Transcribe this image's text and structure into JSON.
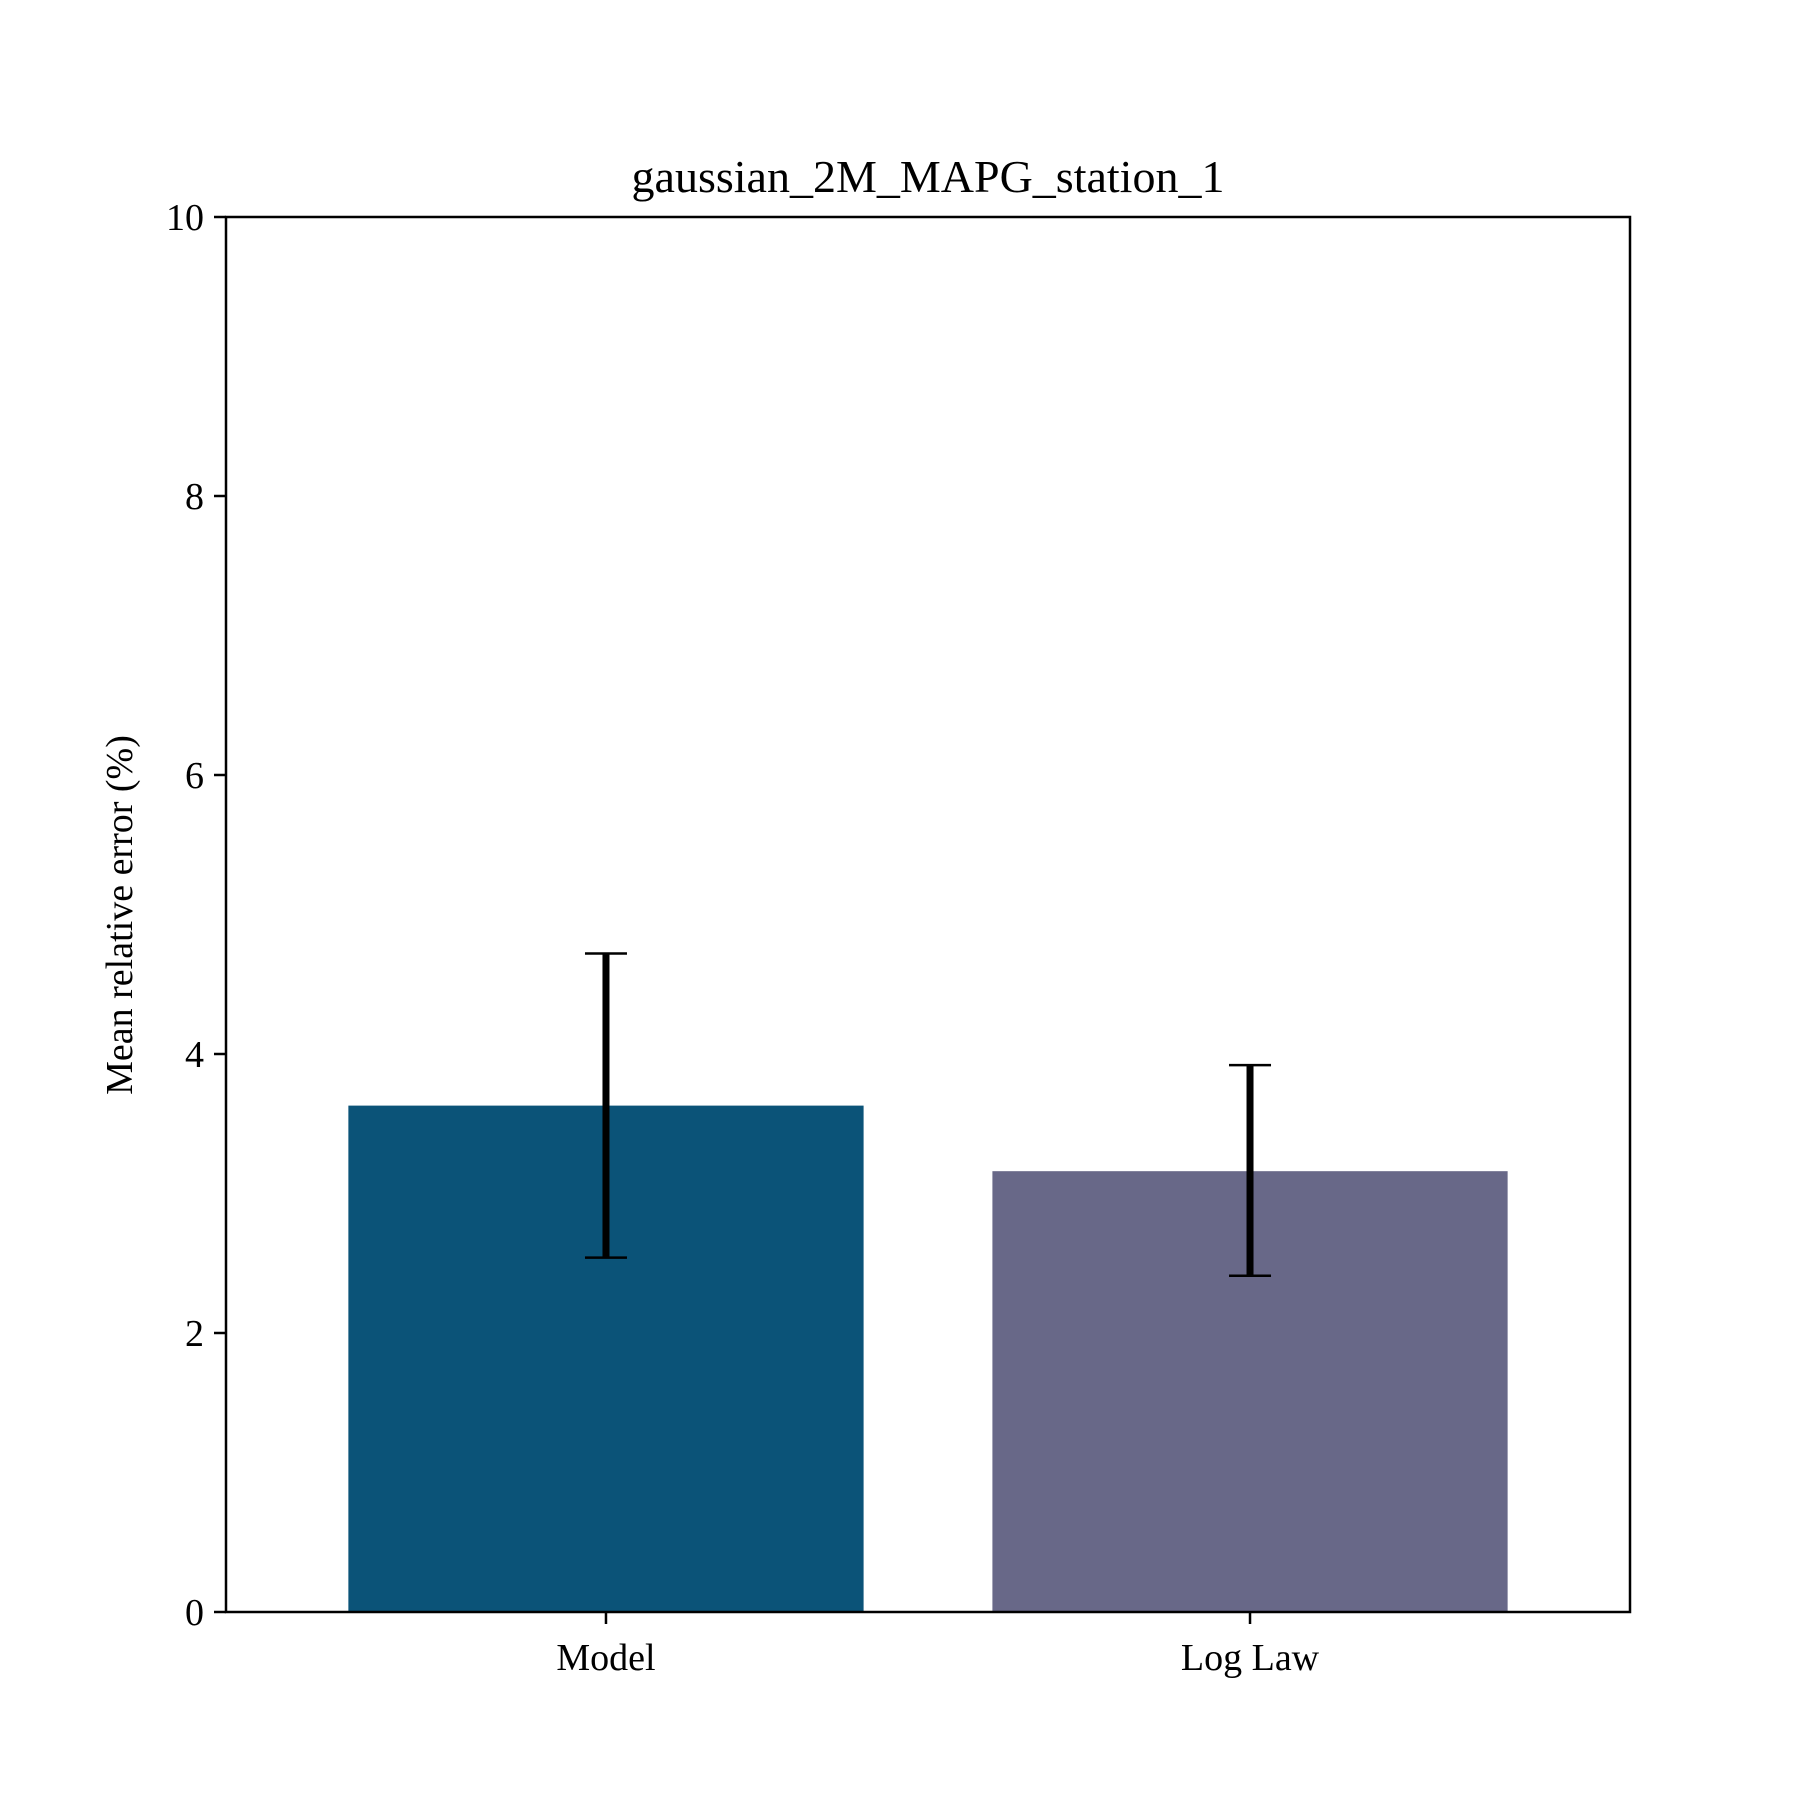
{
  "chart_data": {
    "type": "bar",
    "title": "gaussian_2M_MAPG_station_1",
    "xlabel": "",
    "ylabel": "Mean relative error (%)",
    "categories": [
      "Model",
      "Log Law"
    ],
    "values": [
      3.63,
      3.16
    ],
    "error_low": [
      2.54,
      2.41
    ],
    "error_high": [
      4.72,
      3.92
    ],
    "ylim": [
      0,
      10
    ],
    "yticks": [
      "0",
      "2",
      "4",
      "6",
      "8",
      "10"
    ],
    "ytick_values": [
      0,
      2,
      4,
      6,
      8,
      10
    ],
    "bar_colors": [
      "#0b5378",
      "#686888"
    ],
    "error_bar_color": "#000000",
    "grid": false,
    "legend": "none"
  }
}
